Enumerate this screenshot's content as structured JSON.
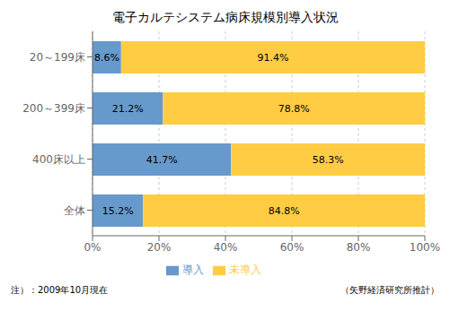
{
  "chart_data": {
    "type": "bar",
    "title": "電子カルテシステム病床規模別導入状況",
    "orientation": "horizontal",
    "stacked": true,
    "categories": [
      "20～199床",
      "200～399床",
      "400床以上",
      "全体"
    ],
    "series": [
      {
        "name": "導入",
        "color": "#6699CC",
        "values": [
          8.6,
          21.2,
          41.7,
          15.2
        ],
        "value_labels": [
          "8.6%",
          "21.2%",
          "41.7%",
          "15.2%"
        ]
      },
      {
        "name": "未導入",
        "color": "#FFCC44",
        "values": [
          91.4,
          78.8,
          58.3,
          84.8
        ],
        "value_labels": [
          "91.4%",
          "78.8%",
          "58.3%",
          "84.8%"
        ]
      }
    ],
    "data_labels": true,
    "xlim": [
      0,
      100
    ],
    "xticks": [
      {
        "value": 0,
        "label": "0%"
      },
      {
        "value": 20,
        "label": "20%"
      },
      {
        "value": 40,
        "label": "40%"
      },
      {
        "value": 60,
        "label": "60%"
      },
      {
        "value": 80,
        "label": "80%"
      },
      {
        "value": 100,
        "label": "100%"
      }
    ],
    "grid": true,
    "legend": "bottom",
    "annotations": [
      "注）：2009年10月現在",
      "（矢野経済研究所推計）"
    ]
  }
}
